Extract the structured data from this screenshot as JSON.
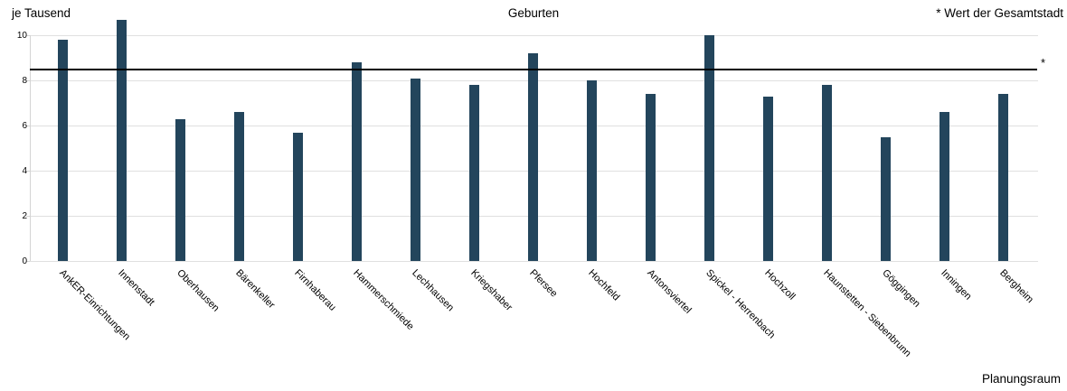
{
  "header": {
    "y_axis_title": "je Tausend",
    "title": "Geburten",
    "legend_note": "* Wert der Gesamtstadt"
  },
  "footer": {
    "x_axis_title": "Planungsraum"
  },
  "chart_data": {
    "type": "bar",
    "title": "Geburten",
    "y_axis_title": "je Tausend",
    "x_axis_title": "Planungsraum",
    "legend_note": "* Wert der Gesamtstadt",
    "categories": [
      "AnkER-Einrichtungen",
      "Innenstadt",
      "Oberhausen",
      "Bärenkeller",
      "Firnhaberau",
      "Hammerschmiede",
      "Lechhausen",
      "Kriegshaber",
      "Pfersee",
      "Hochfeld",
      "Antonsviertel",
      "Spickel - Herrenbach",
      "Hochzoll",
      "Haunstetten - Siebenbrunn",
      "Göggingen",
      "Inningen",
      "Bergheim"
    ],
    "values": [
      9.8,
      10.7,
      6.3,
      6.6,
      5.7,
      8.8,
      8.1,
      7.8,
      9.2,
      8.0,
      7.4,
      10.0,
      7.3,
      7.8,
      5.5,
      6.6,
      7.4
    ],
    "reference_line": {
      "value": 8.5,
      "marker": "*",
      "description": "Wert der Gesamtstadt"
    },
    "ylim": [
      0,
      10
    ],
    "y_ticks": [
      0,
      2,
      4,
      6,
      8,
      10
    ],
    "grid": true,
    "legend_position": "top-right",
    "colors": {
      "bar": "#23455c",
      "gridline": "#e0e0e0",
      "axis": "#d4d4d4",
      "reference_line": "#000000",
      "text": "#000000",
      "background": "#ffffff"
    }
  }
}
